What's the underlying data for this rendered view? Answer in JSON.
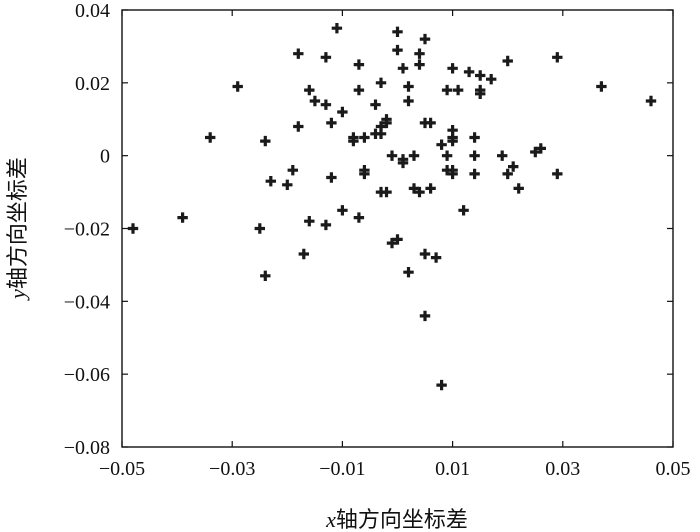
{
  "chart_data": {
    "type": "scatter",
    "title": "",
    "xlabel_var": "x",
    "xlabel": "轴方向坐标差",
    "ylabel_var": "y",
    "ylabel": "轴方向坐标差",
    "xlim": [
      -0.05,
      0.05
    ],
    "ylim": [
      -0.08,
      0.04
    ],
    "xticks": [
      -0.05,
      -0.03,
      -0.01,
      0.01,
      0.03,
      0.05
    ],
    "xtick_labels": [
      "−0.05",
      "−0.03",
      "−0.01",
      "0.01",
      "0.03",
      "0.05"
    ],
    "yticks": [
      0.04,
      0.02,
      0,
      -0.02,
      -0.04,
      -0.06,
      -0.08
    ],
    "ytick_labels": [
      "0.04",
      "0.02",
      "0",
      "−0.02",
      "−0.04",
      "−0.06",
      "−0.08"
    ],
    "grid": false,
    "marker": "plus-filled",
    "marker_color": "#1a1a1a",
    "points": [
      {
        "x": -0.048,
        "y": -0.02
      },
      {
        "x": -0.039,
        "y": -0.017
      },
      {
        "x": -0.034,
        "y": 0.005
      },
      {
        "x": -0.029,
        "y": 0.019
      },
      {
        "x": -0.025,
        "y": -0.02
      },
      {
        "x": -0.024,
        "y": -0.033
      },
      {
        "x": -0.024,
        "y": 0.004
      },
      {
        "x": -0.023,
        "y": -0.007
      },
      {
        "x": -0.02,
        "y": -0.008
      },
      {
        "x": -0.019,
        "y": -0.004
      },
      {
        "x": -0.018,
        "y": 0.008
      },
      {
        "x": -0.018,
        "y": 0.028
      },
      {
        "x": -0.017,
        "y": -0.027
      },
      {
        "x": -0.016,
        "y": -0.018
      },
      {
        "x": -0.016,
        "y": 0.018
      },
      {
        "x": -0.015,
        "y": 0.015
      },
      {
        "x": -0.013,
        "y": -0.019
      },
      {
        "x": -0.013,
        "y": 0.014
      },
      {
        "x": -0.013,
        "y": 0.027
      },
      {
        "x": -0.012,
        "y": -0.006
      },
      {
        "x": -0.012,
        "y": 0.009
      },
      {
        "x": -0.011,
        "y": 0.035
      },
      {
        "x": -0.01,
        "y": -0.015
      },
      {
        "x": -0.01,
        "y": 0.012
      },
      {
        "x": -0.008,
        "y": 0.004
      },
      {
        "x": -0.008,
        "y": 0.005
      },
      {
        "x": -0.007,
        "y": -0.017
      },
      {
        "x": -0.007,
        "y": 0.018
      },
      {
        "x": -0.007,
        "y": 0.025
      },
      {
        "x": -0.006,
        "y": -0.004
      },
      {
        "x": -0.006,
        "y": -0.005
      },
      {
        "x": -0.006,
        "y": 0.005
      },
      {
        "x": -0.004,
        "y": 0.006
      },
      {
        "x": -0.004,
        "y": 0.014
      },
      {
        "x": -0.003,
        "y": 0.008
      },
      {
        "x": -0.003,
        "y": 0.006
      },
      {
        "x": -0.003,
        "y": 0.02
      },
      {
        "x": -0.003,
        "y": -0.01
      },
      {
        "x": -0.002,
        "y": -0.01
      },
      {
        "x": -0.002,
        "y": 0.009
      },
      {
        "x": -0.002,
        "y": 0.01
      },
      {
        "x": -0.001,
        "y": -0.024
      },
      {
        "x": -0.001,
        "y": 0.0
      },
      {
        "x": 0.0,
        "y": -0.023
      },
      {
        "x": 0.0,
        "y": 0.029
      },
      {
        "x": 0.0,
        "y": 0.034
      },
      {
        "x": 0.001,
        "y": 0.024
      },
      {
        "x": 0.001,
        "y": -0.001
      },
      {
        "x": 0.001,
        "y": -0.002
      },
      {
        "x": 0.002,
        "y": -0.032
      },
      {
        "x": 0.002,
        "y": 0.015
      },
      {
        "x": 0.002,
        "y": 0.019
      },
      {
        "x": 0.003,
        "y": 0.0
      },
      {
        "x": 0.003,
        "y": -0.009
      },
      {
        "x": 0.004,
        "y": 0.025
      },
      {
        "x": 0.004,
        "y": 0.028
      },
      {
        "x": 0.004,
        "y": -0.01
      },
      {
        "x": 0.005,
        "y": -0.044
      },
      {
        "x": 0.005,
        "y": 0.032
      },
      {
        "x": 0.005,
        "y": 0.009
      },
      {
        "x": 0.005,
        "y": -0.027
      },
      {
        "x": 0.006,
        "y": -0.009
      },
      {
        "x": 0.006,
        "y": 0.009
      },
      {
        "x": 0.007,
        "y": -0.028
      },
      {
        "x": 0.008,
        "y": -0.063
      },
      {
        "x": 0.008,
        "y": 0.003
      },
      {
        "x": 0.009,
        "y": -0.004
      },
      {
        "x": 0.009,
        "y": 0.0
      },
      {
        "x": 0.009,
        "y": 0.018
      },
      {
        "x": 0.01,
        "y": 0.024
      },
      {
        "x": 0.01,
        "y": 0.007
      },
      {
        "x": 0.01,
        "y": 0.005
      },
      {
        "x": 0.01,
        "y": -0.005
      },
      {
        "x": 0.01,
        "y": 0.004
      },
      {
        "x": 0.01,
        "y": -0.004
      },
      {
        "x": 0.011,
        "y": 0.018
      },
      {
        "x": 0.012,
        "y": -0.015
      },
      {
        "x": 0.013,
        "y": 0.023
      },
      {
        "x": 0.014,
        "y": -0.005
      },
      {
        "x": 0.014,
        "y": 0.005
      },
      {
        "x": 0.014,
        "y": 0.0
      },
      {
        "x": 0.015,
        "y": 0.017
      },
      {
        "x": 0.015,
        "y": 0.018
      },
      {
        "x": 0.015,
        "y": 0.022
      },
      {
        "x": 0.017,
        "y": 0.021
      },
      {
        "x": 0.019,
        "y": 0.0
      },
      {
        "x": 0.02,
        "y": 0.026
      },
      {
        "x": 0.02,
        "y": -0.005
      },
      {
        "x": 0.021,
        "y": -0.003
      },
      {
        "x": 0.022,
        "y": -0.009
      },
      {
        "x": 0.025,
        "y": 0.001
      },
      {
        "x": 0.026,
        "y": 0.002
      },
      {
        "x": 0.029,
        "y": 0.027
      },
      {
        "x": 0.029,
        "y": -0.005
      },
      {
        "x": 0.037,
        "y": 0.019
      },
      {
        "x": 0.046,
        "y": 0.015
      }
    ]
  }
}
